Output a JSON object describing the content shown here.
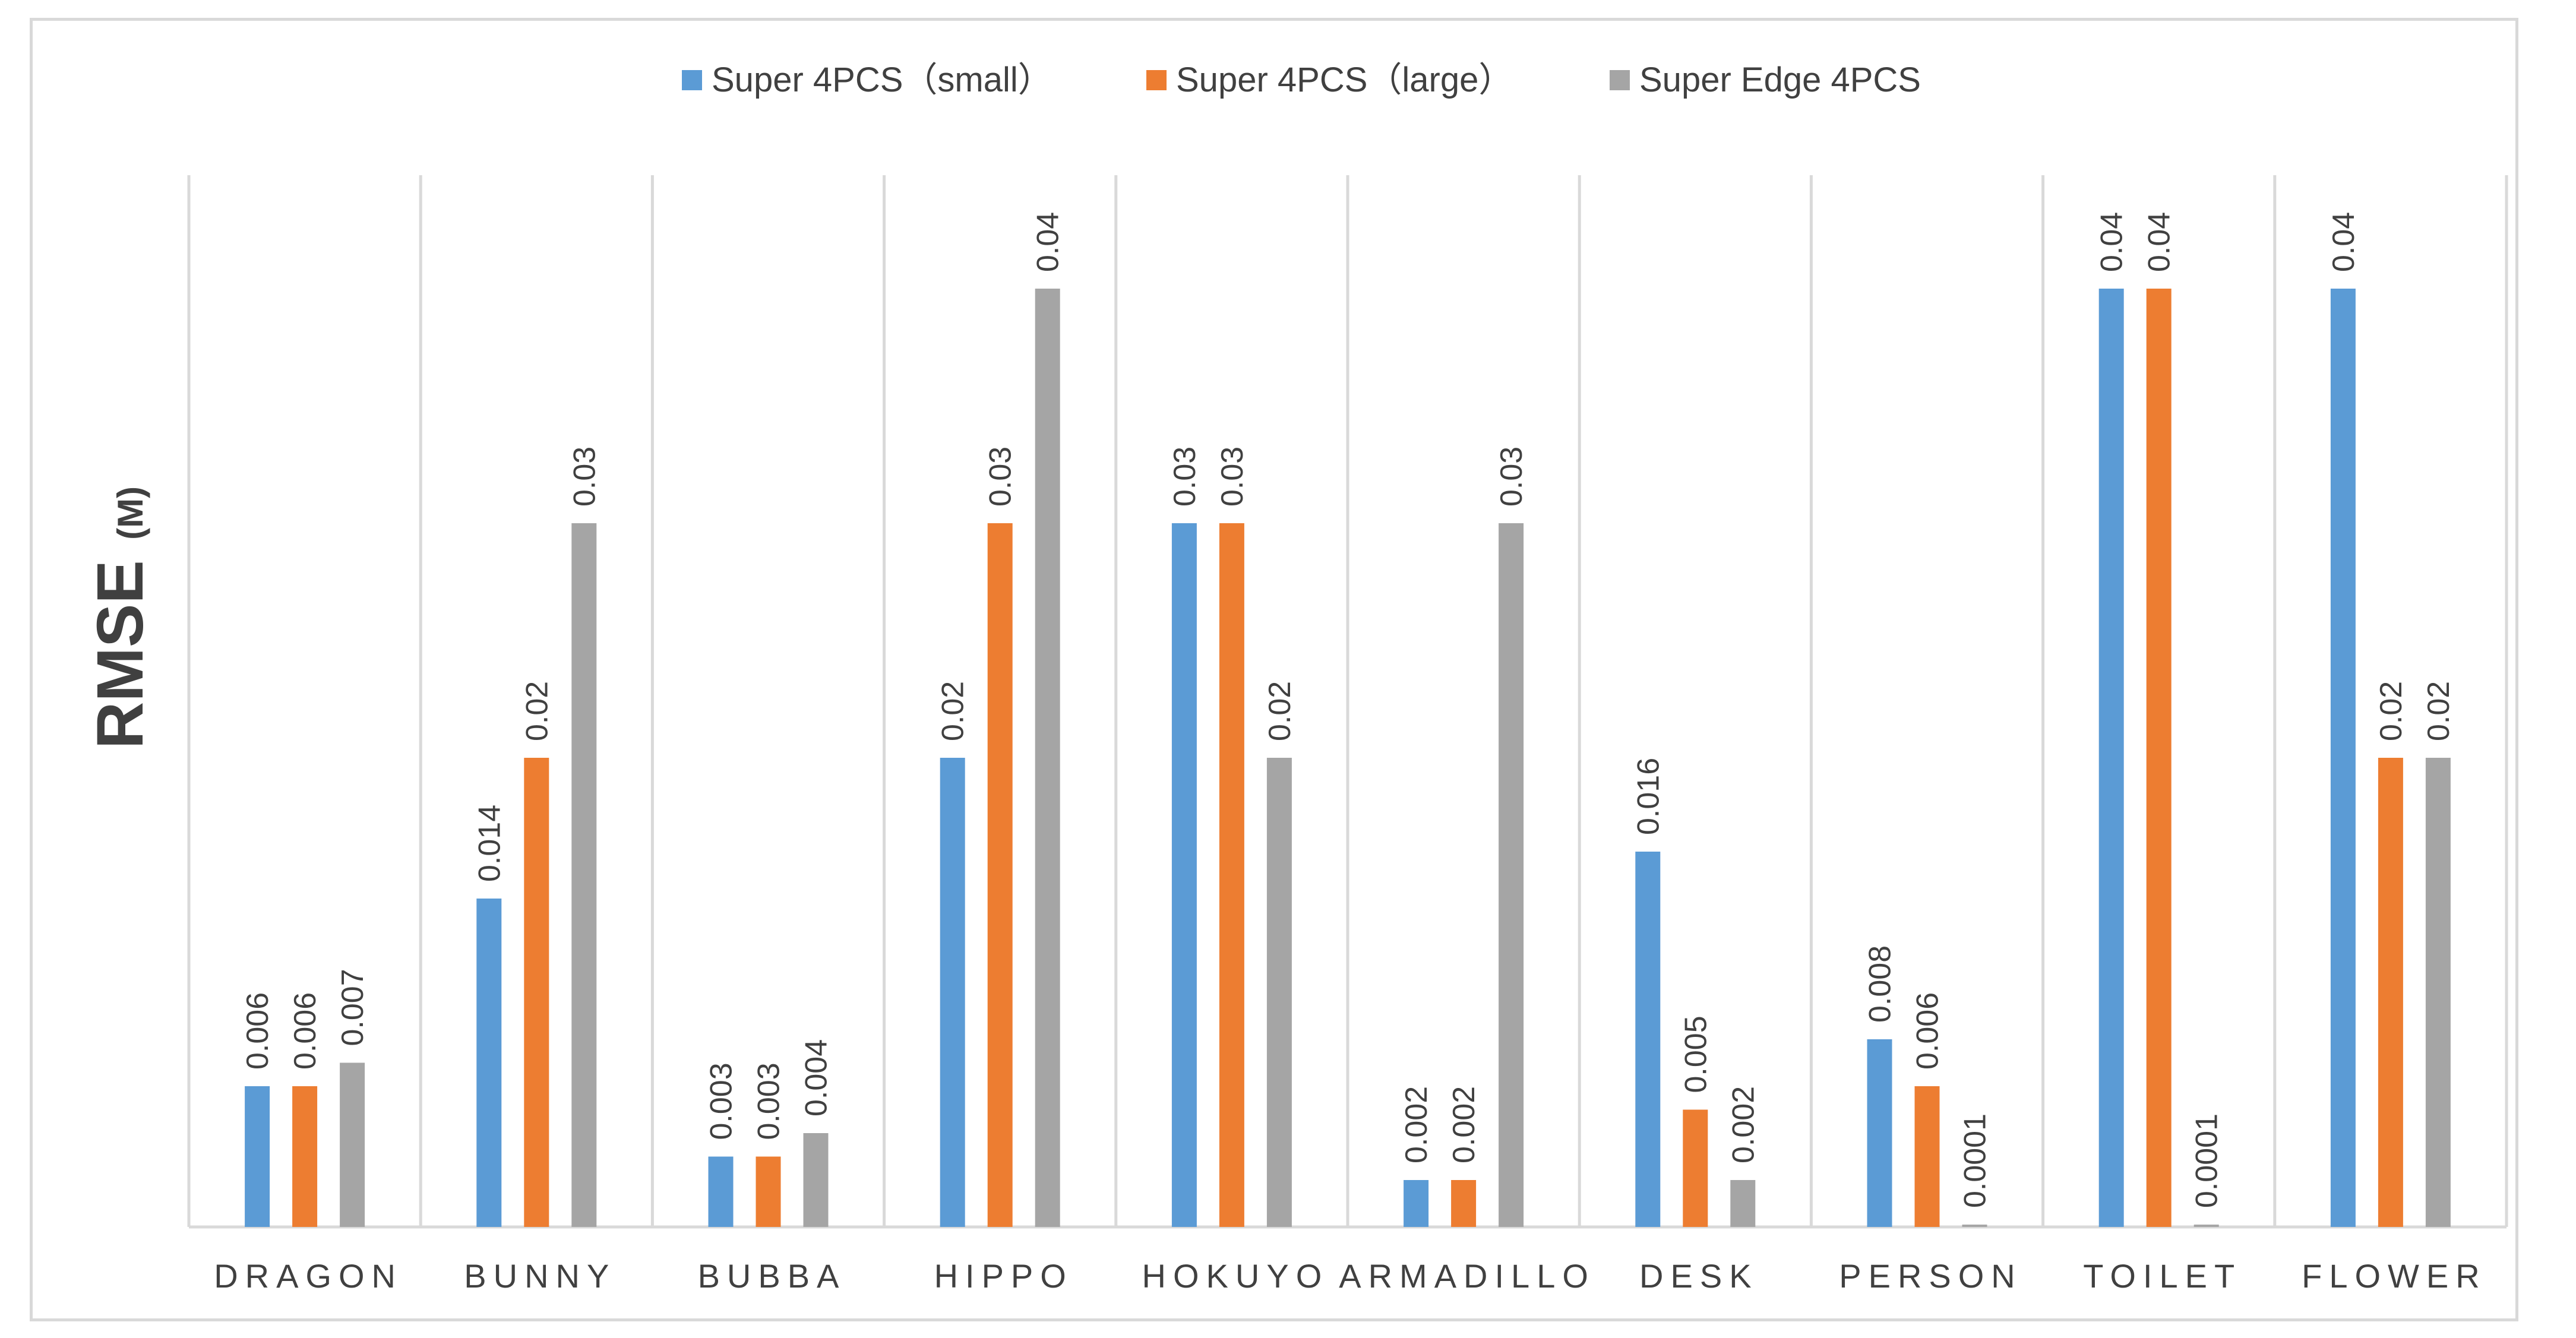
{
  "chart_data": {
    "type": "bar",
    "title": "",
    "ylabel": "RMSE",
    "ylabel_unit": "(M)",
    "xlabel": "",
    "ylim": [
      0,
      0.045
    ],
    "grid": "vertical category separators",
    "legend_position": "top-center",
    "categories": [
      "DRAGON",
      "BUNNY",
      "BUBBA",
      "HIPPO",
      "HOKUYO",
      "ARMADILLO",
      "DESK",
      "PERSON",
      "TOILET",
      "FLOWER"
    ],
    "series": [
      {
        "name": "Super 4PCS（small）",
        "color": "#5b9bd5",
        "values": [
          0.006,
          0.014,
          0.003,
          0.02,
          0.03,
          0.002,
          0.016,
          0.008,
          0.04,
          0.04
        ],
        "labels": [
          "0.006",
          "0.014",
          "0.003",
          "0.02",
          "0.03",
          "0.002",
          "0.016",
          "0.008",
          "0.04",
          "0.04"
        ]
      },
      {
        "name": "Super 4PCS（large）",
        "color": "#ed7d31",
        "values": [
          0.006,
          0.02,
          0.003,
          0.03,
          0.03,
          0.002,
          0.005,
          0.006,
          0.04,
          0.02
        ],
        "labels": [
          "0.006",
          "0.02",
          "0.003",
          "0.03",
          "0.03",
          "0.002",
          "0.005",
          "0.006",
          "0.04",
          "0.02"
        ]
      },
      {
        "name": "Super Edge 4PCS",
        "color": "#a5a5a5",
        "values": [
          0.007,
          0.03,
          0.004,
          0.04,
          0.02,
          0.03,
          0.002,
          0.0001,
          0.0001,
          0.02
        ],
        "labels": [
          "0.007",
          "0.03",
          "0.004",
          "0.04",
          "0.02",
          "0.03",
          "0.002",
          "0.0001",
          "0.0001",
          "0.02"
        ]
      }
    ]
  }
}
